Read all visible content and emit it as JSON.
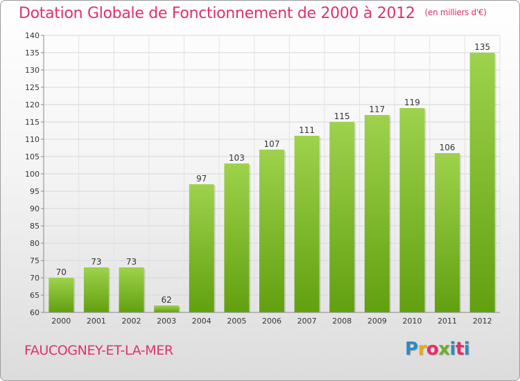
{
  "colors": {
    "accent": "#e0306a",
    "bar_light": "#9ed24c",
    "bar_dark": "#62a010",
    "logo_letters": [
      "#2e89c6",
      "#f2a900",
      "#e0306a",
      "#67b02e",
      "#2e89c6",
      "#e0306a"
    ]
  },
  "footer": {
    "commune": "FAUCOGNEY-ET-LA-MER",
    "logo": "Proxiti"
  },
  "chart_data": {
    "type": "bar",
    "title": "Dotation Globale de Fonctionnement de 2000 à 2012",
    "subtitle": "(en milliers d'€)",
    "xlabel": "",
    "ylabel": "",
    "categories": [
      "2000",
      "2001",
      "2002",
      "2003",
      "2004",
      "2005",
      "2006",
      "2007",
      "2008",
      "2009",
      "2010",
      "2011",
      "2012"
    ],
    "values": [
      70,
      73,
      73,
      62,
      97,
      103,
      107,
      111,
      115,
      117,
      119,
      106,
      135
    ],
    "value_labels": [
      "70",
      "73",
      "73",
      "62",
      "97",
      "103",
      "107",
      "111",
      "115",
      "117",
      "119",
      "106",
      "135"
    ],
    "ylim": [
      60,
      140
    ],
    "yticks": [
      "60",
      "65",
      "70",
      "75",
      "80",
      "85",
      "90",
      "95",
      "100",
      "105",
      "110",
      "115",
      "120",
      "125",
      "130",
      "135",
      "140"
    ],
    "grid": true,
    "legend": false
  }
}
